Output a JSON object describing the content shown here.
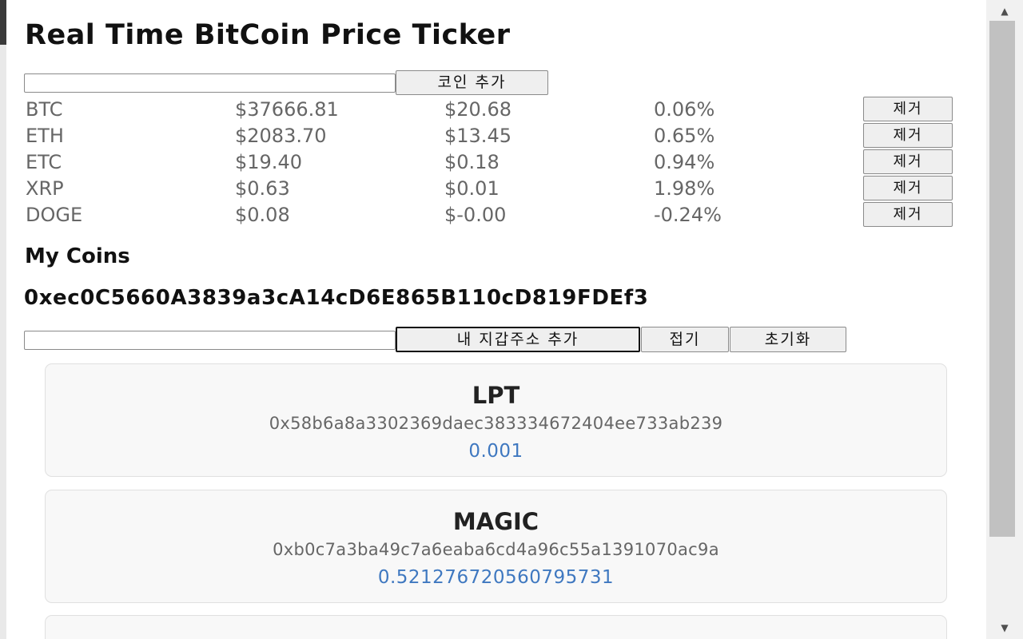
{
  "header": {
    "title": "Real Time BitCoin Price Ticker"
  },
  "add_coin": {
    "input_value": "",
    "button_label": "코인 추가"
  },
  "ticker": {
    "remove_label": "제거",
    "rows": [
      {
        "symbol": "BTC",
        "price": "$37666.81",
        "change": "$20.68",
        "percent": "0.06%"
      },
      {
        "symbol": "ETH",
        "price": "$2083.70",
        "change": "$13.45",
        "percent": "0.65%"
      },
      {
        "symbol": "ETC",
        "price": "$19.40",
        "change": "$0.18",
        "percent": "0.94%"
      },
      {
        "symbol": "XRP",
        "price": "$0.63",
        "change": "$0.01",
        "percent": "1.98%"
      },
      {
        "symbol": "DOGE",
        "price": "$0.08",
        "change": "$-0.00",
        "percent": "-0.24%"
      }
    ]
  },
  "my_coins": {
    "heading": "My Coins",
    "wallet_address": "0xec0C5660A3839a3cA14cD6E865B110cD819FDEf3",
    "input_value": "",
    "add_wallet_label": "내 지갑주소 추가",
    "collapse_label": "접기",
    "reset_label": "초기화",
    "cards": [
      {
        "symbol": "LPT",
        "contract": "0x58b6a8a3302369daec383334672404ee733ab239",
        "balance": "0.001"
      },
      {
        "symbol": "MAGIC",
        "contract": "0xb0c7a3ba49c7a6eaba6cd4a96c55a1391070ac9a",
        "balance": "0.521276720560795731"
      }
    ]
  },
  "colors": {
    "balance": "#3f78c0",
    "muted_text": "#666666",
    "card_bg": "#f8f8f8"
  },
  "scrollbar": {
    "up_icon": "arrow-up-icon",
    "down_icon": "arrow-down-icon"
  }
}
